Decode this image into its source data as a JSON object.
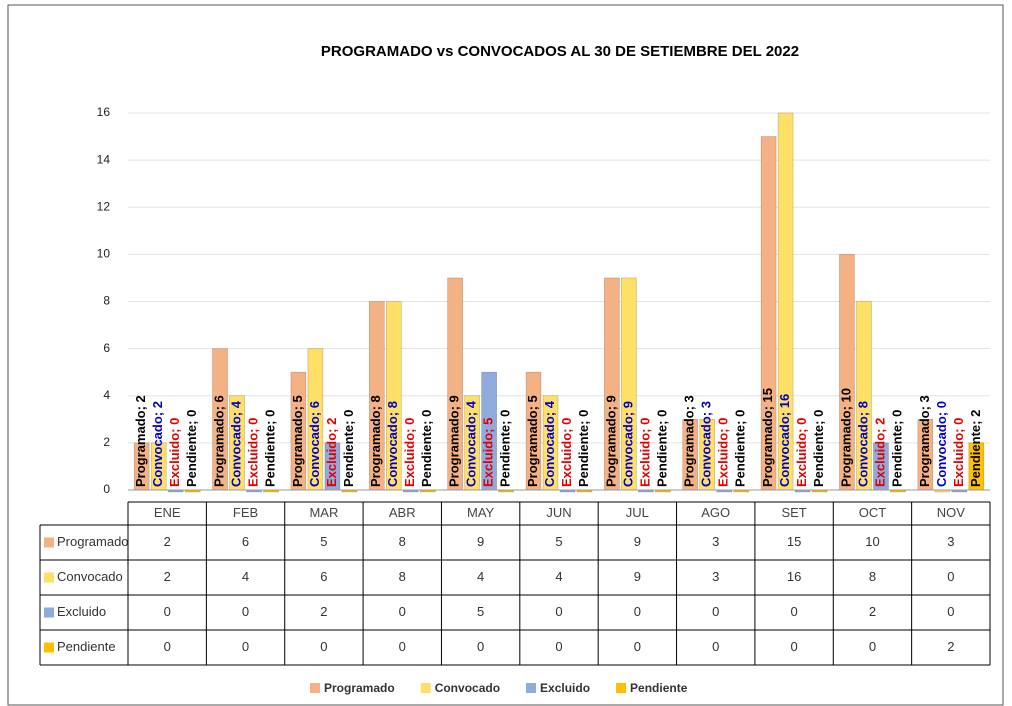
{
  "chart_data": {
    "type": "bar",
    "title": "PROGRAMADO vs CONVOCADOS AL 30 DE SETIEMBRE DEL 2022",
    "categories": [
      "ENE",
      "FEB",
      "MAR",
      "ABR",
      "MAY",
      "JUN",
      "JUL",
      "AGO",
      "SET",
      "OCT",
      "NOV"
    ],
    "series": [
      {
        "name": "Programado",
        "color": "#f4b183",
        "label_color": "#000000",
        "values": [
          2,
          6,
          5,
          8,
          9,
          5,
          9,
          3,
          15,
          10,
          3
        ],
        "value_labels": [
          "Programado; 2",
          "Programado; 6",
          "Programado; 5",
          "Programado; 8",
          "Programado; 9",
          "Programado; 5",
          "Programado; 9",
          "Programado; 3",
          "Programado; 15",
          "Programado; 10",
          "Programado; 3"
        ]
      },
      {
        "name": "Convocado",
        "color": "#ffe066",
        "label_color": "#0000cc",
        "values": [
          2,
          4,
          6,
          8,
          4,
          4,
          9,
          3,
          16,
          8,
          0
        ],
        "value_labels": [
          "Convocado; 2",
          "Convocado; 4",
          "Convocado; 6",
          "Convocado; 8",
          "Convocado; 4",
          "Convocado; 4",
          "Convocado; 9",
          "Convocado; 3",
          "Convocado; 16",
          "Convocado; 8",
          "Convocado; 0"
        ]
      },
      {
        "name": "Excluido",
        "color": "#8faadc",
        "label_color": "#e00000",
        "values": [
          0,
          0,
          2,
          0,
          5,
          0,
          0,
          0,
          0,
          2,
          0
        ],
        "value_labels": [
          "Excluido; 0",
          "Excluido; 0",
          "Excluido; 2",
          "Excluido; 0",
          "Excluido; 5",
          "Excluido; 0",
          "Excluido; 0",
          "Excluido; 0",
          "Excluido; 0",
          "Excluido; 2",
          "Excluido; 0"
        ]
      },
      {
        "name": "Pendiente",
        "color": "#ffc000",
        "label_color": "#000000",
        "values": [
          0,
          0,
          0,
          0,
          0,
          0,
          0,
          0,
          0,
          0,
          2
        ],
        "value_labels": [
          "Pendiente; 0",
          "Pendiente; 0",
          "Pendiente; 0",
          "Pendiente; 0",
          "Pendiente; 0",
          "Pendiente; 0",
          "Pendiente; 0",
          "Pendiente; 0",
          "Pendiente; 0",
          "Pendiente; 0",
          "Pendiente; 2"
        ]
      }
    ],
    "ylim": [
      0,
      16
    ],
    "yticks": [
      0,
      2,
      4,
      6,
      8,
      10,
      12,
      14,
      16
    ],
    "grid": true,
    "legend": "bottom"
  }
}
